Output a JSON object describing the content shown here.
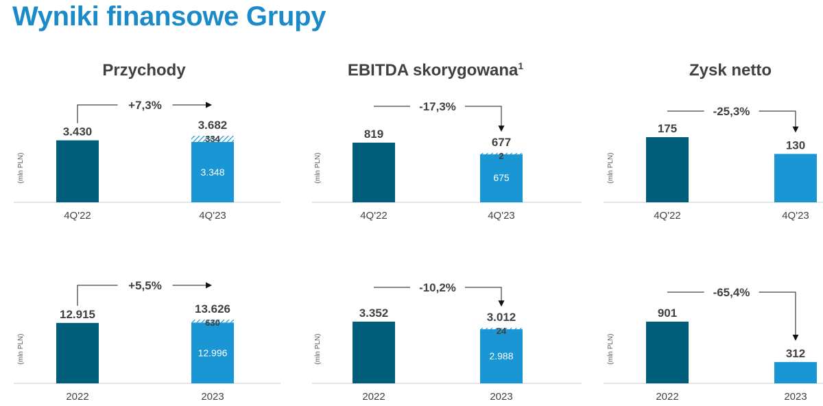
{
  "title": "Wyniki finansowe Grupy",
  "columns": [
    {
      "title": "Przychody",
      "sup": ""
    },
    {
      "title": "EBITDA skorygowana",
      "sup": "1"
    },
    {
      "title": "Zysk netto",
      "sup": ""
    }
  ],
  "colors": {
    "prev": "#005e7a",
    "curr": "#1a96d4",
    "title": "#1a8bc8",
    "text": "#404040"
  },
  "chart_data": [
    {
      "type": "bar",
      "title": "Przychody",
      "ylabel": "(mln PLN)",
      "categories": [
        "4Q'22",
        "4Q'23"
      ],
      "values": [
        3430,
        3682
      ],
      "value_labels": [
        "3.430",
        "3.682"
      ],
      "segments": {
        "base": 3348,
        "base_label": "3.348",
        "hatched": 334,
        "hatched_label": "334"
      },
      "change": "+7,3%"
    },
    {
      "type": "bar",
      "title": "EBITDA skorygowana",
      "ylabel": "(mln PLN)",
      "categories": [
        "4Q'22",
        "4Q'23"
      ],
      "values": [
        819,
        677
      ],
      "value_labels": [
        "819",
        "677"
      ],
      "segments": {
        "base": 675,
        "base_label": "675",
        "hatched": 2,
        "hatched_label": "2"
      },
      "change": "-17,3%"
    },
    {
      "type": "bar",
      "title": "Zysk netto",
      "ylabel": "(mln PLN)",
      "categories": [
        "4Q'22",
        "4Q'23"
      ],
      "values": [
        175,
        130
      ],
      "value_labels": [
        "175",
        "130"
      ],
      "change": "-25,3%"
    },
    {
      "type": "bar",
      "title": "Przychody",
      "ylabel": "(mln PLN)",
      "categories": [
        "2022",
        "2023"
      ],
      "values": [
        12915,
        13626
      ],
      "value_labels": [
        "12.915",
        "13.626"
      ],
      "segments": {
        "base": 12996,
        "base_label": "12.996",
        "hatched": 630,
        "hatched_label": "630"
      },
      "change": "+5,5%"
    },
    {
      "type": "bar",
      "title": "EBITDA skorygowana",
      "ylabel": "(mln PLN)",
      "categories": [
        "2022",
        "2023"
      ],
      "values": [
        3352,
        3012
      ],
      "value_labels": [
        "3.352",
        "3.012"
      ],
      "segments": {
        "base": 2988,
        "base_label": "2.988",
        "hatched": 24,
        "hatched_label": "24"
      },
      "change": "-10,2%"
    },
    {
      "type": "bar",
      "title": "Zysk netto",
      "ylabel": "(mln PLN)",
      "categories": [
        "2022",
        "2023"
      ],
      "values": [
        901,
        312
      ],
      "value_labels": [
        "901",
        "312"
      ],
      "change": "-65,4%"
    }
  ]
}
